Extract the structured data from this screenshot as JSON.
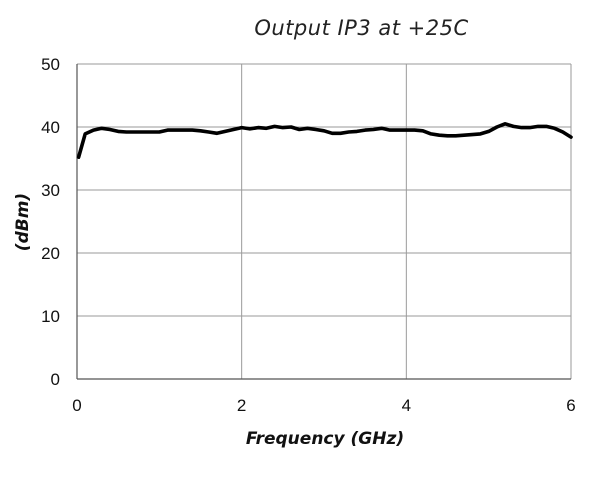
{
  "chart_data": {
    "type": "line",
    "title": "Output IP3 at +25C",
    "xlabel": "Frequency (GHz)",
    "ylabel": "(dBm)",
    "xlim": [
      0,
      6
    ],
    "ylim": [
      0,
      50
    ],
    "xticks": [
      "0",
      "2",
      "4",
      "6"
    ],
    "yticks": [
      "0",
      "10",
      "20",
      "30",
      "40",
      "50"
    ],
    "grid": true,
    "legend": "none",
    "series": [
      {
        "color": "#000000",
        "x": [
          0.02,
          0.1,
          0.2,
          0.3,
          0.4,
          0.5,
          0.6,
          0.7,
          0.8,
          0.9,
          1.0,
          1.1,
          1.2,
          1.3,
          1.4,
          1.5,
          1.6,
          1.7,
          1.8,
          1.9,
          2.0,
          2.1,
          2.2,
          2.3,
          2.4,
          2.5,
          2.6,
          2.7,
          2.8,
          2.9,
          3.0,
          3.1,
          3.2,
          3.3,
          3.4,
          3.5,
          3.6,
          3.7,
          3.8,
          3.9,
          4.0,
          4.1,
          4.2,
          4.3,
          4.4,
          4.5,
          4.6,
          4.7,
          4.8,
          4.9,
          5.0,
          5.1,
          5.2,
          5.3,
          5.4,
          5.5,
          5.6,
          5.7,
          5.8,
          5.9,
          6.0
        ],
        "y": [
          35.2,
          38.9,
          39.5,
          39.8,
          39.6,
          39.3,
          39.2,
          39.2,
          39.2,
          39.2,
          39.2,
          39.5,
          39.5,
          39.5,
          39.5,
          39.4,
          39.2,
          39.0,
          39.3,
          39.6,
          39.9,
          39.7,
          39.9,
          39.8,
          40.1,
          39.9,
          40.0,
          39.6,
          39.8,
          39.6,
          39.4,
          39.0,
          39.0,
          39.2,
          39.3,
          39.5,
          39.6,
          39.8,
          39.5,
          39.5,
          39.5,
          39.5,
          39.4,
          38.9,
          38.7,
          38.6,
          38.6,
          38.7,
          38.8,
          38.9,
          39.3,
          40.0,
          40.5,
          40.1,
          39.9,
          39.9,
          40.1,
          40.1,
          39.8,
          39.2,
          38.4
        ]
      }
    ]
  }
}
